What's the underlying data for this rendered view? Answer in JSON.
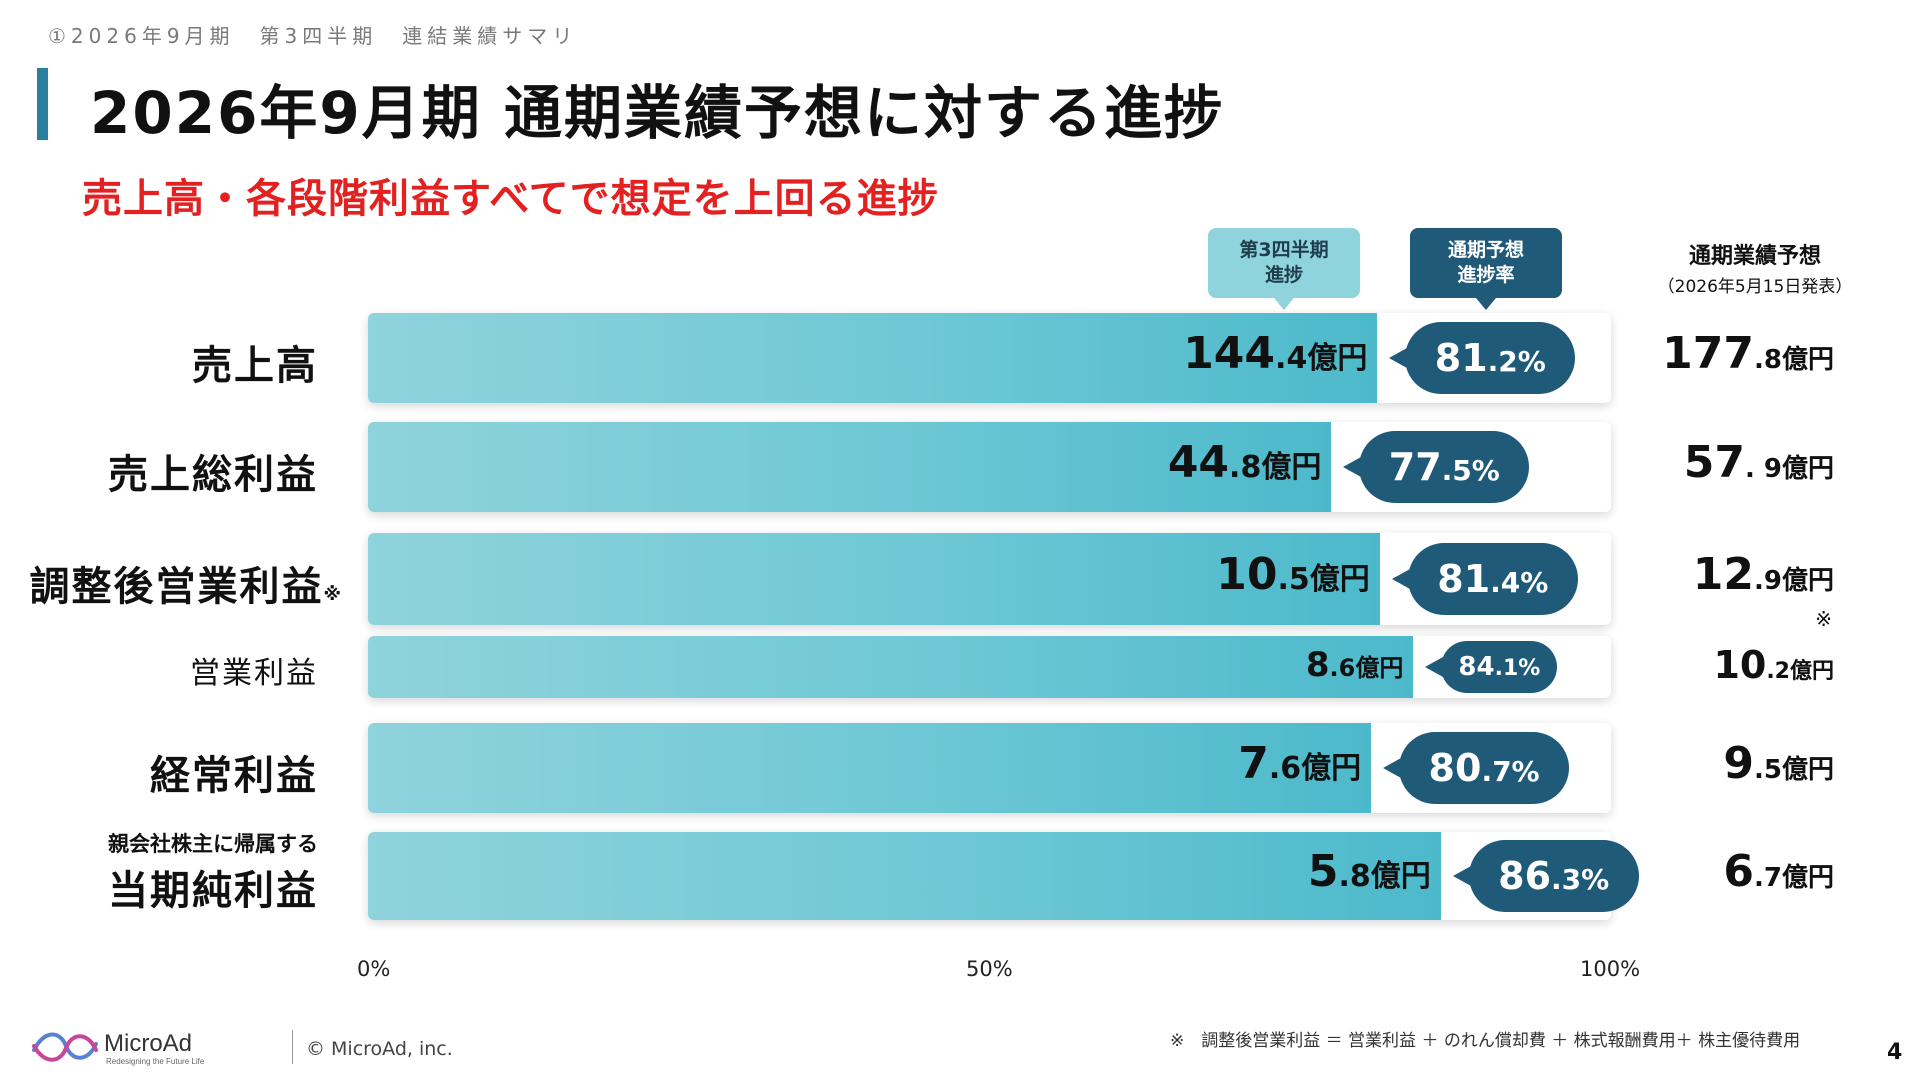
{
  "header": {
    "breadcrumb": "①2026年9月期　第3四半期　連結業績サマリ",
    "title": "2026年9月期 通期業績予想に対する進捗",
    "subtitle": "売上高・各段階利益すべてで想定を上回る進捗"
  },
  "legend": {
    "q3_progress": [
      "第3四半期",
      "進捗"
    ],
    "rate": [
      "通期予想",
      "進捗率"
    ],
    "forecast_title": "通期業績予想",
    "forecast_sub": "（2026年5月15日発表）"
  },
  "colors": {
    "bar": "#6ec8d5",
    "bubble": "#1f5a78",
    "accent_red": "#e32121",
    "title_bar": "#2a7f9e"
  },
  "chart_data": {
    "type": "bar",
    "orientation": "horizontal",
    "xlim": [
      0,
      100
    ],
    "x_ticks": [
      "0%",
      "50%",
      "100%"
    ],
    "rows": [
      {
        "label": "売上高",
        "prefix": "",
        "note": "",
        "q3_big": "144",
        "q3_small": ".4億円",
        "q3_value": 144.4,
        "progress_pct": 81.2,
        "pct_big": "81",
        "pct_small": ".2%",
        "forecast_big": "177",
        "forecast_small": ".8億円",
        "forecast_value": 177.8,
        "forecast_note": ""
      },
      {
        "label": "売上総利益",
        "prefix": "",
        "note": "",
        "q3_big": "44",
        "q3_small": ".8億円",
        "q3_value": 44.8,
        "progress_pct": 77.5,
        "pct_big": "77",
        "pct_small": ".5%",
        "forecast_big": "57",
        "forecast_small": ". 9億円",
        "forecast_value": 57.9,
        "forecast_note": ""
      },
      {
        "label": "調整後営業利益",
        "prefix": "",
        "note": "※",
        "q3_big": "10",
        "q3_small": ".5億円",
        "q3_value": 10.5,
        "progress_pct": 81.4,
        "pct_big": "81",
        "pct_small": ".4%",
        "forecast_big": "12",
        "forecast_small": ".9億円",
        "forecast_value": 12.9,
        "forecast_note": "※"
      },
      {
        "label": "営業利益",
        "prefix": "",
        "note": "",
        "q3_big": "8",
        "q3_small": ".6億円",
        "q3_value": 8.6,
        "progress_pct": 84.1,
        "pct_big": "84",
        "pct_small": ".1%",
        "forecast_big": "10",
        "forecast_small": ".2億円",
        "forecast_value": 10.2,
        "forecast_note": ""
      },
      {
        "label": "経常利益",
        "prefix": "",
        "note": "",
        "q3_big": "7",
        "q3_small": ".6億円",
        "q3_value": 7.6,
        "progress_pct": 80.7,
        "pct_big": "80",
        "pct_small": ".7%",
        "forecast_big": "9",
        "forecast_small": ".5億円",
        "forecast_value": 9.5,
        "forecast_note": ""
      },
      {
        "label": "当期純利益",
        "prefix": "親会社株主に帰属する",
        "note": "",
        "q3_big": "5",
        "q3_small": ".8億円",
        "q3_value": 5.8,
        "progress_pct": 86.3,
        "pct_big": "86",
        "pct_small": ".3%",
        "forecast_big": "6",
        "forecast_small": ".7億円",
        "forecast_value": 6.7,
        "forecast_note": ""
      }
    ]
  },
  "footer": {
    "footnote": "※　調整後営業利益 ＝ 営業利益 ＋ のれん償却費 ＋ 株式報酬費用＋ 株主優待費用",
    "logo_name": "MicroAd",
    "logo_tagline": "Redesigning the Future Life",
    "copyright": "© MicroAd, inc.",
    "page_number": "4"
  }
}
